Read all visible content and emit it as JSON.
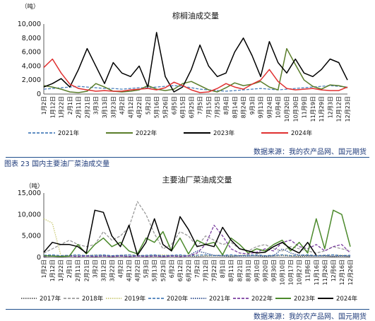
{
  "charts": [
    {
      "title": "棕榈油成交量",
      "unit": "（吨）",
      "source": "数据来源：我的农产品网、国元期货"
    },
    {
      "caption": "图表 23 国内主要油厂菜油成交量",
      "title": "主要油厂菜油成交量",
      "unit": "（吨）",
      "source": "数据来源：我的农产品网、国元期货"
    }
  ],
  "chart_data": [
    {
      "type": "line",
      "title": "棕榈油成交量",
      "ylabel": "（吨）",
      "ylim": [
        0,
        10000
      ],
      "yticks": [
        0,
        2000,
        4000,
        6000,
        8000,
        10000
      ],
      "categories": [
        "1月2日",
        "1月12日",
        "1月22日",
        "2月1日",
        "2月11日",
        "2月21日",
        "3月3日",
        "3月13日",
        "3月23日",
        "4月2日",
        "4月12日",
        "4月22日",
        "5月2日",
        "5月16日",
        "5月26日",
        "6月5日",
        "6月15日",
        "6月25日",
        "7月5日",
        "7月15日",
        "7月25日",
        "8月4日",
        "8月14日",
        "8月24日",
        "9月3日",
        "9月13日",
        "9月24日",
        "10月4日",
        "10月20日",
        "10月30日",
        "11月9日",
        "11月19日",
        "11月29日",
        "12月3日",
        "12月12日",
        "12月23日"
      ],
      "grid": false,
      "legend": "bottom",
      "series": [
        {
          "name": "2021年",
          "style": "dashed",
          "color": "#4a7ebb",
          "values": [
            700,
            800,
            900,
            1000,
            1100,
            1000,
            900,
            800,
            800,
            700,
            800,
            900,
            900,
            1000,
            1100,
            1200,
            1100,
            900,
            700,
            600,
            500,
            400,
            500,
            600,
            700,
            800,
            700,
            600,
            700,
            800,
            900,
            1000,
            1100,
            1200,
            1100,
            1000
          ]
        },
        {
          "name": "2022年",
          "style": "solid",
          "color": "#5a7d2a",
          "values": [
            1200,
            1000,
            700,
            300,
            200,
            400,
            1500,
            1000,
            400,
            300,
            400,
            600,
            1200,
            700,
            500,
            700,
            1500,
            1800,
            1200,
            600,
            300,
            900,
            1600,
            1200,
            1400,
            1800,
            1000,
            600,
            6500,
            4200,
            2000,
            1100,
            700,
            1300,
            1200,
            900
          ]
        },
        {
          "name": "2023年",
          "style": "solid",
          "color": "#000000",
          "values": [
            1000,
            1500,
            2200,
            1000,
            3500,
            6500,
            4000,
            1500,
            4500,
            3000,
            2500,
            4000,
            1000,
            8800,
            2500,
            300,
            1000,
            3500,
            7000,
            4000,
            2500,
            3000,
            6000,
            8000,
            5500,
            2500,
            7500,
            4500,
            3000,
            5000,
            3000,
            2500,
            3500,
            5000,
            4500,
            2000
          ]
        },
        {
          "name": "2024年",
          "style": "solid",
          "color": "#e03030",
          "values": [
            3800,
            5000,
            3000,
            1400,
            800,
            600,
            400,
            500,
            400,
            400,
            600,
            700,
            800,
            600,
            900,
            1700,
            1200,
            600,
            200,
            300,
            800,
            1500,
            1000,
            700,
            1400,
            2000,
            3500,
            1800,
            800,
            600,
            700,
            800,
            600,
            500,
            500,
            1000
          ]
        }
      ]
    },
    {
      "type": "line",
      "title": "主要油厂菜油成交量",
      "ylabel": "（吨）",
      "ylim": [
        0,
        15000
      ],
      "yticks": [
        0,
        5000,
        10000,
        15000
      ],
      "categories": [
        "1月2日",
        "1月12日",
        "1月22日",
        "2月1日",
        "2月11日",
        "2月21日",
        "3月2日",
        "3月12日",
        "3月22日",
        "4月2日",
        "4月12日",
        "4月22日",
        "5月3日",
        "5月13日",
        "5月23日",
        "6月2日",
        "6月12日",
        "6月22日",
        "7月2日",
        "7月12日",
        "7月22日",
        "8月1日",
        "8月11日",
        "8月21日",
        "8月31日",
        "9月10日",
        "9月20日",
        "9月30日",
        "10月10日",
        "10月17日",
        "10月27日",
        "11月6日",
        "11月16日",
        "11月26日",
        "12月6日",
        "12月16日",
        "12月26日"
      ],
      "grid": false,
      "legend": "bottom",
      "series": [
        {
          "name": "2017年",
          "style": "dotted",
          "color": "#555555",
          "values": [
            400,
            300,
            200,
            300,
            400,
            300,
            200,
            300,
            200,
            300,
            200,
            300,
            400,
            300,
            200,
            300,
            400,
            300,
            200,
            300,
            400,
            300,
            200,
            300,
            400,
            300,
            200,
            300,
            400,
            300,
            200,
            300,
            400,
            300,
            200,
            300,
            200
          ]
        },
        {
          "name": "2018年",
          "style": "dashed",
          "color": "#9a9a9a",
          "values": [
            1000,
            2000,
            3000,
            4000,
            3000,
            2500,
            3000,
            6000,
            4000,
            5000,
            7000,
            13000,
            10000,
            5500,
            2000,
            3000,
            6000,
            5000,
            2500,
            5000,
            4000,
            3000,
            3500,
            2000,
            1500,
            2500,
            3000,
            2000,
            1500,
            2500,
            2000,
            1500,
            1000,
            1500,
            2500,
            2000,
            1500
          ]
        },
        {
          "name": "2019年",
          "style": "dotted",
          "color": "#c8c870",
          "values": [
            9000,
            8000,
            500,
            400,
            500,
            400,
            600,
            500,
            400,
            500,
            600,
            500,
            400,
            500,
            600,
            500,
            400,
            500,
            600,
            500,
            400,
            500,
            400,
            500,
            600,
            500,
            400,
            500,
            600,
            500,
            400,
            500,
            400,
            500,
            600,
            500,
            400
          ]
        },
        {
          "name": "2020年",
          "style": "dashed",
          "color": "#4a7ebb",
          "values": [
            500,
            600,
            400,
            500,
            600,
            400,
            500,
            600,
            400,
            500,
            600,
            400,
            500,
            600,
            400,
            500,
            600,
            400,
            500,
            600,
            400,
            500,
            600,
            400,
            500,
            600,
            400,
            500,
            600,
            400,
            500,
            600,
            400,
            500,
            600,
            400,
            500
          ]
        },
        {
          "name": "2021年",
          "style": "dotted",
          "color": "#2a4a8c",
          "values": [
            300,
            400,
            300,
            400,
            300,
            400,
            300,
            400,
            300,
            400,
            300,
            400,
            300,
            400,
            300,
            400,
            300,
            400,
            1500,
            1000,
            500,
            400,
            300,
            400,
            300,
            400,
            300,
            400,
            2000,
            1000,
            500,
            400,
            300,
            400,
            300,
            400,
            300
          ]
        },
        {
          "name": "2022年",
          "style": "dashed",
          "color": "#7b3fa0",
          "values": [
            200,
            300,
            200,
            300,
            200,
            300,
            200,
            300,
            200,
            300,
            200,
            300,
            200,
            300,
            200,
            300,
            200,
            300,
            1000,
            3000,
            7500,
            5000,
            2000,
            1000,
            800,
            1200,
            2000,
            1500,
            3500,
            4000,
            2500,
            2000,
            3000,
            1500,
            2500,
            3000,
            1000
          ]
        },
        {
          "name": "2023年",
          "style": "solid",
          "color": "#4c8a2c",
          "values": [
            400,
            300,
            200,
            300,
            3000,
            800,
            3000,
            4500,
            2500,
            3500,
            1500,
            800,
            4500,
            3500,
            6000,
            1500,
            4500,
            800,
            4000,
            3000,
            3500,
            600,
            4500,
            3000,
            1000,
            2000,
            1500,
            3000,
            4000,
            1500,
            3500,
            1000,
            9000,
            2000,
            11000,
            10000,
            2500
          ]
        },
        {
          "name": "2024年",
          "style": "solid",
          "color": "#000000",
          "values": [
            1200,
            3500,
            3000,
            3000,
            2500,
            1000,
            11000,
            10500,
            5000,
            2500,
            7500,
            500,
            3500,
            9000,
            3000,
            1500,
            9500,
            6500,
            2500,
            3000,
            2500,
            7000,
            4000,
            2000,
            1500,
            1000,
            1200,
            2500,
            3500,
            2000,
            1000,
            3500,
            500,
            null,
            null,
            null,
            null
          ]
        }
      ]
    }
  ]
}
